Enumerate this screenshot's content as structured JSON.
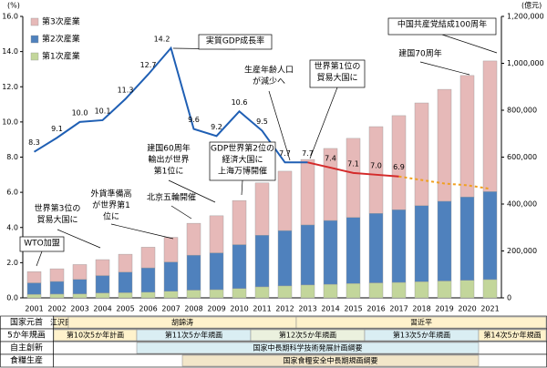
{
  "chart_data": {
    "type": "bar_line",
    "subtype": "stacked",
    "ylabel": "(%)",
    "y2label": "(億元)",
    "categories": [
      "2001",
      "2002",
      "2003",
      "2004",
      "2005",
      "2006",
      "2007",
      "2008",
      "2009",
      "2010",
      "2011",
      "2012",
      "2013",
      "2014",
      "2015",
      "2016",
      "2017",
      "2018",
      "2019",
      "2020",
      "2021"
    ],
    "ylim": [
      0,
      16
    ],
    "yticks": [
      {
        "value": 0,
        "label": "0.0"
      },
      {
        "value": 2,
        "label": "2.0"
      },
      {
        "value": 4,
        "label": "4.0"
      },
      {
        "value": 6,
        "label": "6.0"
      },
      {
        "value": 8,
        "label": "8.0"
      },
      {
        "value": 10,
        "label": "10.0"
      },
      {
        "value": 12,
        "label": "12.0"
      },
      {
        "value": 14,
        "label": "14.0"
      },
      {
        "value": 16,
        "label": "16.0"
      }
    ],
    "y2lim": [
      0,
      1200000
    ],
    "y2ticks": [
      0,
      {
        "value": 200000,
        "label": "200,000"
      },
      {
        "value": 400000,
        "label": "400,000"
      },
      {
        "value": 600000,
        "label": "600,000"
      },
      {
        "value": 800000,
        "label": "800,000"
      },
      {
        "value": 1000000,
        "label": "1,000,000"
      },
      {
        "value": 1200000,
        "label": "1,200,000"
      }
    ],
    "legend": "upper left",
    "series": [
      {
        "name": "第3次産業",
        "type": "bar",
        "axis": "y2",
        "color": "#e6b9b8",
        "values": [
          48000,
          54000,
          63000,
          68000,
          76000,
          88000,
          105000,
          136000,
          158000,
          188000,
          223000,
          253000,
          279000,
          307000,
          337000,
          370000,
          401000,
          438000,
          477000,
          518000,
          557000
        ]
      },
      {
        "name": "第2次産業",
        "type": "bar",
        "axis": "y2",
        "color": "#4f81bd",
        "values": [
          49000,
          54000,
          62000,
          74000,
          88000,
          104000,
          125000,
          149000,
          157000,
          187000,
          220000,
          236000,
          256000,
          272000,
          282000,
          296000,
          310000,
          324000,
          340000,
          355000,
          375000
        ]
      },
      {
        "name": "第1次産業",
        "type": "bar",
        "axis": "y2",
        "color": "#c3d69b",
        "values": [
          15000,
          16000,
          17000,
          21000,
          22000,
          24000,
          28000,
          33000,
          35000,
          40000,
          47000,
          51000,
          55000,
          58000,
          61000,
          64000,
          66000,
          69000,
          72000,
          75000,
          78000
        ]
      },
      {
        "name": "実質GDP成長率",
        "type": "line",
        "axis": "y",
        "color": "#1f5fb4",
        "values": [
          8.3,
          9.1,
          10,
          10.1,
          11.3,
          12.7,
          14.2,
          9.6,
          9.2,
          10.6,
          9.5,
          7.7,
          7.7,
          null,
          null,
          null,
          null,
          null,
          null,
          null,
          null
        ],
        "value_labels": [
          "8.3",
          "9.1",
          "10.0",
          "10.1",
          "11.3",
          "12.7",
          "14.2",
          "9.6",
          "9.2",
          "10.6",
          "9.5",
          "7.7",
          "7.7",
          null,
          null,
          null,
          null,
          null,
          null,
          null,
          null
        ]
      },
      {
        "type": "line",
        "axis": "y",
        "color": "#d42a2a",
        "values": [
          null,
          null,
          null,
          null,
          null,
          null,
          null,
          null,
          null,
          null,
          null,
          null,
          7.7,
          7.4,
          7.1,
          7,
          6.9,
          null,
          null,
          null,
          null
        ],
        "value_labels": [
          null,
          null,
          null,
          null,
          null,
          null,
          null,
          null,
          null,
          null,
          null,
          null,
          null,
          "7.4",
          "7.1",
          "7.0",
          "6.9",
          null,
          null,
          null,
          null
        ]
      },
      {
        "type": "line",
        "axis": "y",
        "color": "#f0a020",
        "dashed": true,
        "values": [
          null,
          null,
          null,
          null,
          null,
          null,
          null,
          null,
          null,
          null,
          null,
          null,
          null,
          null,
          null,
          null,
          6.9,
          6.7,
          6.5,
          6.4,
          6.2
        ]
      }
    ],
    "annotations": [
      [
        "中国共産党結成100周年"
      ],
      [
        "建国70周年"
      ],
      [
        "生産年齢人口",
        "が減少へ"
      ],
      [
        "世界第1位の",
        "貿易大国に"
      ],
      [
        "建国60周年",
        "輸出が世界",
        "第1位に"
      ],
      [
        "GDP世界第2位の",
        "経済大国に",
        "上海万博開催"
      ],
      [
        "北京五輪開催"
      ],
      [
        "外貨準備高",
        "が世界第1",
        "位に"
      ],
      [
        "世界第3位の",
        "貿易大国に"
      ],
      [
        "WTO加盟"
      ]
    ]
  },
  "timeline": {
    "rows": [
      {
        "label": "国家元首",
        "spans": [
          {
            "text": "江沢民",
            "from": "2001",
            "to": "2002",
            "color": "#fff2cc"
          },
          {
            "text": "胡錦涛",
            "from": "2003",
            "to": "2012",
            "color": "#fff2cc"
          },
          {
            "text": "習近平",
            "from": "2013",
            "to": "2021",
            "color": "#fff2cc"
          }
        ]
      },
      {
        "label": "5か年規画",
        "spans": [
          {
            "text": "第10次5か年計画",
            "from": "2001",
            "to": "2005",
            "color": "#fff2cc"
          },
          {
            "text": "第11次5か年規画",
            "from": "2006",
            "to": "2010",
            "color": "#daeef3"
          },
          {
            "text": "第12次5か年規画",
            "from": "2011",
            "to": "2015",
            "color": "#ebf1de"
          },
          {
            "text": "第13次5か年規画",
            "from": "2016",
            "to": "2020",
            "color": "#daeef3"
          },
          {
            "text": "第14次5か年規画",
            "from": "2021",
            "to": "2021",
            "color": "#fff2cc"
          }
        ]
      },
      {
        "label": "自主創新",
        "spans": [
          {
            "text": "国家中長期科学技術発展計画綱要",
            "from": "2006",
            "to": "2020",
            "color": "#daeef3"
          }
        ]
      },
      {
        "label": "食糧生産",
        "spans": [
          {
            "text": "国家食糧安全中長期規画綱要",
            "from": "2008",
            "to": "2020",
            "color": "#f2e6c9"
          }
        ]
      }
    ]
  }
}
